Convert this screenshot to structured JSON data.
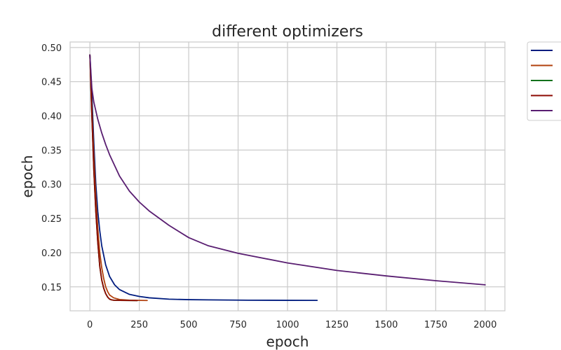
{
  "chart_data": {
    "type": "line",
    "title": "different optimizers",
    "xlabel": "epoch",
    "ylabel": "epoch",
    "xlim": [
      -100,
      2100
    ],
    "ylim": [
      0.115,
      0.508
    ],
    "xticks": [
      0,
      250,
      500,
      750,
      1000,
      1250,
      1500,
      1750,
      2000
    ],
    "yticks": [
      0.15,
      0.2,
      0.25,
      0.3,
      0.35,
      0.4,
      0.45,
      0.5
    ],
    "grid": true,
    "legend_position": "outside-right-top",
    "series": [
      {
        "color": "#001c7f",
        "x": [
          0,
          10,
          20,
          30,
          40,
          50,
          60,
          80,
          100,
          125,
          150,
          200,
          250,
          300,
          400,
          500,
          600,
          800,
          1000,
          1150
        ],
        "y": [
          0.489,
          0.43,
          0.36,
          0.3,
          0.26,
          0.232,
          0.21,
          0.182,
          0.165,
          0.153,
          0.146,
          0.139,
          0.136,
          0.134,
          0.132,
          0.1313,
          0.131,
          0.1305,
          0.1303,
          0.1302
        ]
      },
      {
        "color": "#b1400d",
        "x": [
          0,
          5,
          10,
          20,
          30,
          40,
          50,
          60,
          70,
          80,
          90,
          100,
          120,
          150,
          200,
          250,
          290
        ],
        "y": [
          0.489,
          0.45,
          0.41,
          0.34,
          0.28,
          0.235,
          0.2,
          0.178,
          0.162,
          0.15,
          0.143,
          0.138,
          0.134,
          0.1315,
          0.1305,
          0.1302,
          0.1301
        ]
      },
      {
        "color": "#12711c",
        "x": [
          0,
          10,
          20,
          30,
          40,
          50,
          60,
          70,
          80,
          90,
          100,
          110,
          120,
          150,
          200,
          240
        ],
        "y": [
          0.489,
          0.4,
          0.32,
          0.26,
          0.215,
          0.18,
          0.16,
          0.148,
          0.14,
          0.135,
          0.132,
          0.131,
          0.1305,
          0.1302,
          0.1301,
          0.13
        ]
      },
      {
        "color": "#8c0800",
        "x": [
          0,
          10,
          20,
          30,
          40,
          50,
          60,
          70,
          80,
          90,
          100,
          110,
          120,
          150,
          200,
          240
        ],
        "y": [
          0.489,
          0.4,
          0.32,
          0.26,
          0.215,
          0.18,
          0.16,
          0.148,
          0.14,
          0.135,
          0.132,
          0.131,
          0.1305,
          0.1302,
          0.1301,
          0.13
        ]
      },
      {
        "color": "#591e71",
        "x": [
          0,
          10,
          20,
          40,
          60,
          80,
          100,
          150,
          200,
          250,
          300,
          400,
          500,
          600,
          750,
          1000,
          1250,
          1500,
          1750,
          2000
        ],
        "y": [
          0.489,
          0.44,
          0.42,
          0.395,
          0.375,
          0.358,
          0.343,
          0.312,
          0.29,
          0.274,
          0.261,
          0.24,
          0.222,
          0.21,
          0.199,
          0.185,
          0.174,
          0.166,
          0.159,
          0.153
        ]
      }
    ]
  }
}
